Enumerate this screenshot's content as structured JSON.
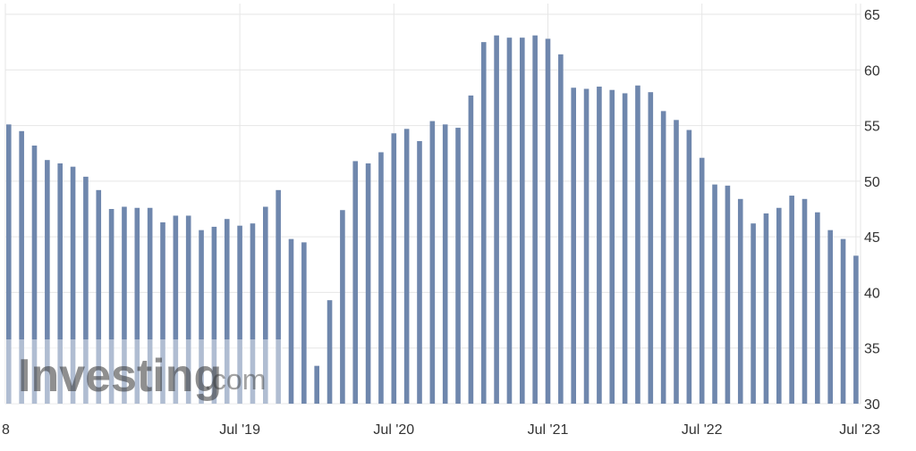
{
  "chart_data": {
    "type": "bar",
    "title": "",
    "xlabel": "",
    "ylabel": "",
    "ylim": [
      30,
      65
    ],
    "y_ticks": [
      30,
      35,
      40,
      45,
      50,
      55,
      60,
      65
    ],
    "y_axis_position": "right",
    "grid": true,
    "bar_color": "#6f87ad",
    "x_ticks": [
      {
        "index": 0,
        "label": "8"
      },
      {
        "index": 18,
        "label": "Jul '19"
      },
      {
        "index": 30,
        "label": "Jul '20"
      },
      {
        "index": 42,
        "label": "Jul '21"
      },
      {
        "index": 54,
        "label": "Jul '22"
      },
      {
        "index": 66,
        "label": "Jul '23"
      }
    ],
    "categories": [
      "2018-01",
      "2018-02",
      "2018-03",
      "2018-04",
      "2018-05",
      "2018-06",
      "2018-07",
      "2018-08",
      "2018-09",
      "2018-10",
      "2018-11",
      "2018-12",
      "2019-01",
      "2019-02",
      "2019-03",
      "2019-04",
      "2019-05",
      "2019-06",
      "2019-07",
      "2019-08",
      "2019-09",
      "2019-10",
      "2019-11",
      "2019-12",
      "2020-01",
      "2020-02",
      "2020-03",
      "2020-04",
      "2020-05",
      "2020-06",
      "2020-07",
      "2020-08",
      "2020-09",
      "2020-10",
      "2020-11",
      "2020-12",
      "2021-01",
      "2021-02",
      "2021-03",
      "2021-04",
      "2021-05",
      "2021-06",
      "2021-07",
      "2021-08",
      "2021-09",
      "2021-10",
      "2021-11",
      "2021-12",
      "2022-01",
      "2022-02",
      "2022-03",
      "2022-04",
      "2022-05",
      "2022-06",
      "2022-07",
      "2022-08",
      "2022-09",
      "2022-10",
      "2022-11",
      "2022-12",
      "2023-01",
      "2023-02",
      "2023-03",
      "2023-04",
      "2023-05",
      "2023-06",
      "2023-07"
    ],
    "values": [
      55.1,
      54.5,
      53.2,
      51.9,
      51.6,
      51.3,
      50.4,
      49.2,
      47.5,
      47.7,
      47.6,
      47.6,
      46.3,
      46.9,
      46.9,
      45.6,
      45.9,
      46.6,
      46.0,
      46.2,
      47.7,
      49.2,
      44.8,
      44.5,
      33.4,
      39.3,
      47.4,
      51.8,
      51.6,
      52.6,
      54.3,
      54.7,
      53.6,
      55.4,
      55.1,
      54.8,
      57.7,
      62.5,
      63.1,
      62.9,
      62.9,
      63.1,
      62.8,
      61.4,
      58.4,
      58.3,
      58.5,
      58.2,
      57.9,
      58.6,
      58.0,
      56.3,
      55.5,
      54.6,
      52.1,
      49.7,
      49.6,
      48.4,
      46.2,
      47.1,
      47.6,
      48.7,
      48.4,
      47.2,
      45.6,
      44.8,
      43.3
    ]
  },
  "watermark": {
    "brand": "Investing",
    "suffix": ".com",
    "color": "#333333"
  }
}
